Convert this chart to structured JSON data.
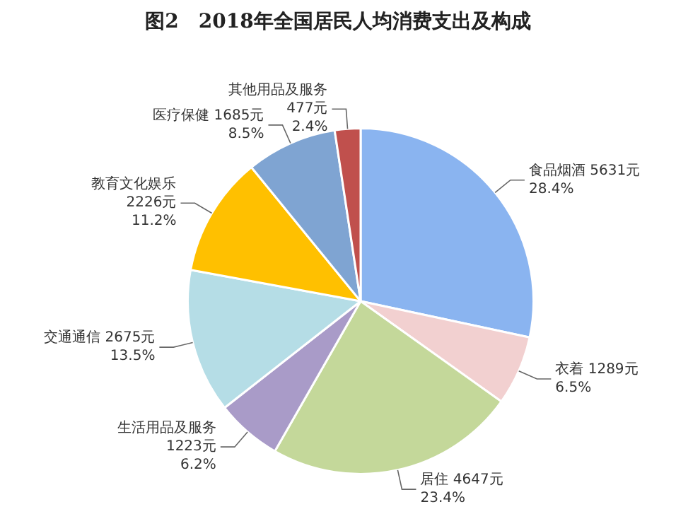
{
  "chart_data": {
    "type": "pie",
    "title": "图2　2018年全国居民人均消费支出及构成",
    "categories": [
      "食品烟酒",
      "衣着",
      "居住",
      "生活用品及服务",
      "交通通信",
      "教育文化娱乐",
      "医疗保健",
      "其他用品及服务"
    ],
    "values": [
      5631,
      1289,
      4647,
      1223,
      2675,
      2226,
      1685,
      477
    ],
    "value_labels": [
      "5631元\n28.4%",
      "1289元\n6.5%",
      "4647元\n23.4%",
      "1223元\n6.2%",
      "2675元\n13.5%",
      "2226元\n11.2%",
      "1685元\n8.5%",
      "477元\n2.4%"
    ],
    "colors": [
      "#8ab4f0",
      "#f2d0d0",
      "#c4d89a",
      "#a99bc8",
      "#b5dde6",
      "#ffc000",
      "#7fa4d2",
      "#c0504d"
    ],
    "legend": false
  }
}
